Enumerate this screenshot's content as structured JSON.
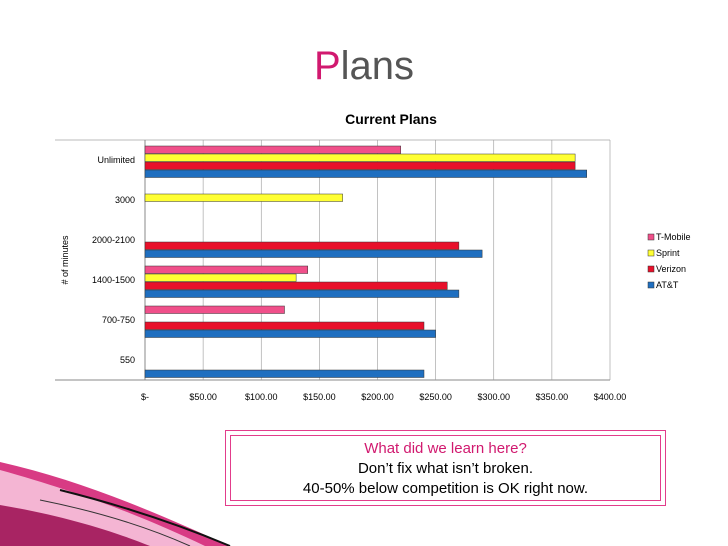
{
  "slide": {
    "title_first_letter": "P",
    "title_rest": "lans"
  },
  "callout": {
    "line1": "What did we learn here?",
    "line2": "Don’t fix what isn’t broken.",
    "line3": "40-50% below competition is OK right now."
  },
  "colors": {
    "title_accent": "#d1196f",
    "callout_border": "#e23c8b",
    "decor": "#d1196f"
  },
  "chart_data": {
    "type": "bar",
    "orientation": "horizontal",
    "title": "Current Plans",
    "ylabel": "# of minutes",
    "xlabel": "",
    "categories": [
      "Unlimited",
      "3000",
      "2000-2100",
      "1400-1500",
      "700-750",
      "550"
    ],
    "x_ticks": [
      "$-",
      "$50.00",
      "$100.00",
      "$150.00",
      "$200.00",
      "$250.00",
      "$300.00",
      "$350.00",
      "$400.00"
    ],
    "xlim": [
      0,
      400
    ],
    "grid": true,
    "legend_position": "right",
    "series": [
      {
        "name": "T-Mobile",
        "color": "#f0508a",
        "values": [
          220,
          null,
          null,
          140,
          120,
          null
        ]
      },
      {
        "name": "Sprint",
        "color": "#ffff33",
        "values": [
          370,
          170,
          null,
          130,
          null,
          null
        ]
      },
      {
        "name": "Verizon",
        "color": "#e8102a",
        "values": [
          370,
          null,
          270,
          260,
          240,
          null
        ]
      },
      {
        "name": "AT&T",
        "color": "#1f6fc0",
        "values": [
          380,
          null,
          290,
          270,
          250,
          240
        ]
      }
    ]
  }
}
